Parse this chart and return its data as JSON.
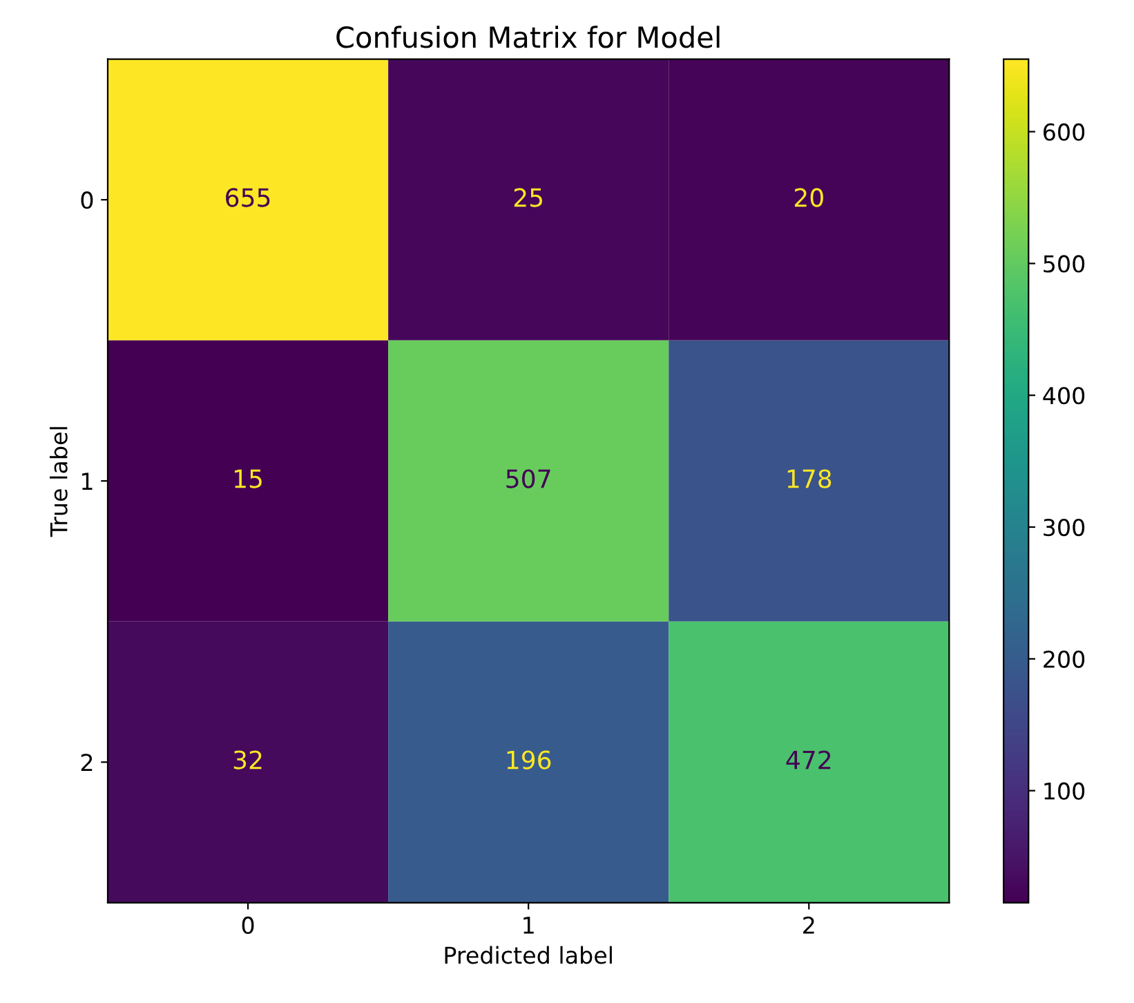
{
  "chart_data": {
    "type": "heatmap",
    "title": "Confusion Matrix for Model",
    "xlabel": "Predicted label",
    "ylabel": "True label",
    "categories": [
      "0",
      "1",
      "2"
    ],
    "y_categories": [
      "0",
      "1",
      "2"
    ],
    "cells": [
      [
        655,
        25,
        20
      ],
      [
        15,
        507,
        178
      ],
      [
        32,
        196,
        472
      ]
    ],
    "clim": [
      15,
      655
    ],
    "cticks": [
      100,
      200,
      300,
      400,
      500,
      600
    ],
    "data_labels": true
  }
}
